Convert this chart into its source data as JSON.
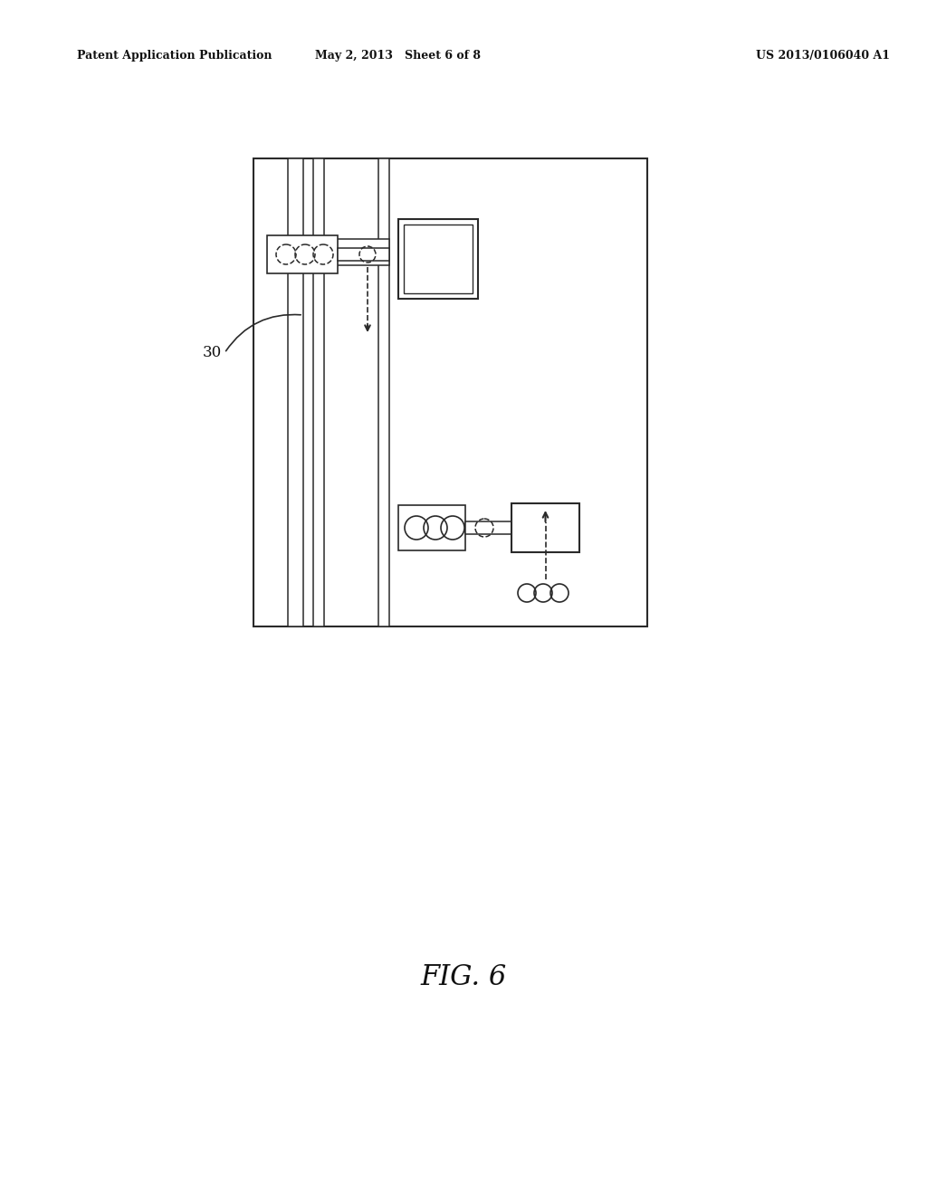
{
  "bg_color": "#ffffff",
  "line_color": "#2a2a2a",
  "header_left": "Patent Application Publication",
  "header_mid": "May 2, 2013   Sheet 6 of 8",
  "header_right": "US 2013/0106040 A1",
  "fig_label": "FIG. 6",
  "label_30": "30"
}
